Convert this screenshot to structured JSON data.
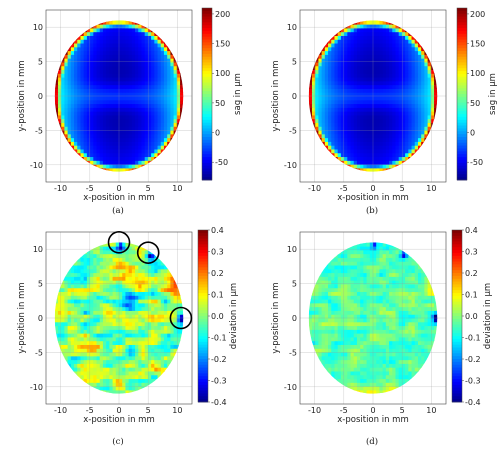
{
  "chart_data": [
    {
      "type": "heatmap",
      "caption": "(a)",
      "xlabel": "x-position in mm",
      "ylabel": "y-position in mm",
      "colorbar_label": "sag in µm",
      "xticks": [
        "-10",
        "-5",
        "0",
        "5",
        "10"
      ],
      "yticks": [
        "-10",
        "-5",
        "0",
        "5",
        "10"
      ],
      "xlim": [
        -12.5,
        12.5
      ],
      "ylim": [
        -12.5,
        12.5
      ],
      "aperture_radius_mm": 11,
      "colorbar_ticks": [
        "-50",
        "0",
        "50",
        "100",
        "150",
        "200"
      ],
      "colorbar_range": [
        -80,
        210
      ],
      "colormap": "jet",
      "grid": true
    },
    {
      "type": "heatmap",
      "caption": "(b)",
      "xlabel": "x-position in mm",
      "ylabel": "y-position in mm",
      "colorbar_label": "sag in µm",
      "xticks": [
        "-10",
        "-5",
        "0",
        "5",
        "10"
      ],
      "yticks": [
        "-10",
        "-5",
        "0",
        "5",
        "10"
      ],
      "xlim": [
        -12.5,
        12.5
      ],
      "ylim": [
        -12.5,
        12.5
      ],
      "aperture_radius_mm": 11,
      "colorbar_ticks": [
        "-50",
        "0",
        "50",
        "100",
        "150",
        "200"
      ],
      "colorbar_range": [
        -80,
        210
      ],
      "colormap": "jet",
      "grid": true
    },
    {
      "type": "heatmap",
      "caption": "(c)",
      "xlabel": "x-position in mm",
      "ylabel": "y-position in mm",
      "colorbar_label": "deviation in µm",
      "xticks": [
        "-10",
        "-5",
        "0",
        "5",
        "10"
      ],
      "yticks": [
        "-10",
        "-5",
        "0",
        "5",
        "10"
      ],
      "xlim": [
        -12.5,
        12.5
      ],
      "ylim": [
        -12.5,
        12.5
      ],
      "aperture_radius_mm": 11,
      "colorbar_ticks": [
        "0.4",
        "0.3",
        "0.2",
        "0.1",
        "0.0",
        "-0.1",
        "-0.2",
        "-0.3",
        "-0.4"
      ],
      "colorbar_range": [
        -0.4,
        0.4
      ],
      "colormap": "jet",
      "grid": true,
      "annotations": [
        {
          "label": "circled defect",
          "x": 0,
          "y": 11
        },
        {
          "label": "circled defect",
          "x": 5,
          "y": 9.5
        },
        {
          "label": "circled defect",
          "x": 10.6,
          "y": 0
        }
      ]
    },
    {
      "type": "heatmap",
      "caption": "(d)",
      "xlabel": "x-position in mm",
      "ylabel": "y-position in mm",
      "colorbar_label": "deviation in µm",
      "xticks": [
        "-10",
        "-5",
        "0",
        "5",
        "10"
      ],
      "yticks": [
        "-10",
        "-5",
        "0",
        "5",
        "10"
      ],
      "xlim": [
        -12.5,
        12.5
      ],
      "ylim": [
        -12.5,
        12.5
      ],
      "aperture_radius_mm": 11,
      "colorbar_ticks": [
        "0.4",
        "0.3",
        "0.2",
        "0.1",
        "0.0",
        "-0.1",
        "-0.2",
        "-0.3",
        "-0.4"
      ],
      "colorbar_range": [
        -0.4,
        0.4
      ],
      "colormap": "jet",
      "grid": true
    }
  ]
}
